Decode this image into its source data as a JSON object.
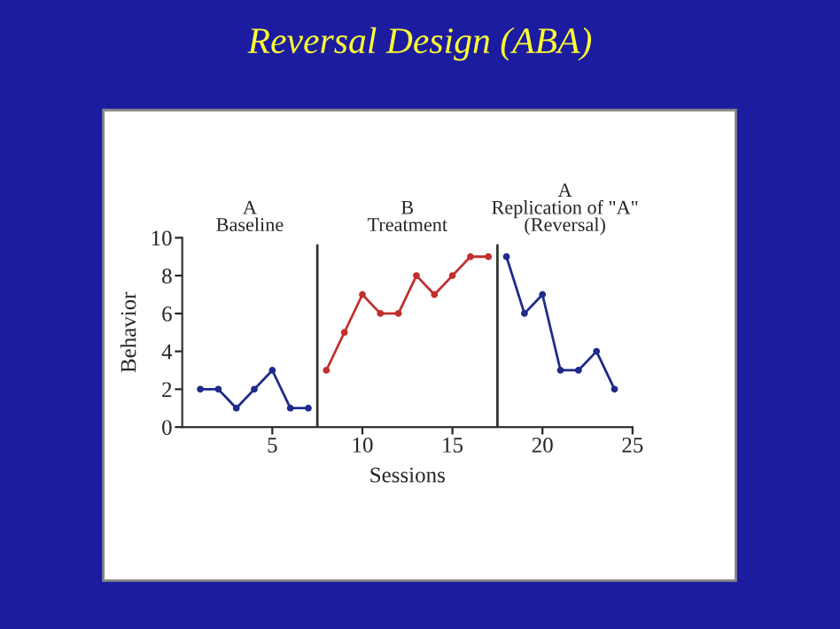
{
  "chart_data": {
    "type": "line",
    "title": "Reversal Design (ABA)",
    "xlabel": "Sessions",
    "ylabel": "Behavior",
    "series": [
      {
        "color": "#1f2a8a",
        "x": [
          1,
          2,
          3,
          4,
          5,
          6,
          7
        ],
        "values": [
          2,
          2,
          1,
          2,
          3,
          1,
          1
        ]
      },
      {
        "color": "#c0302e",
        "x": [
          8,
          9,
          10,
          11,
          12,
          13,
          14,
          15,
          16,
          17
        ],
        "values": [
          3,
          5,
          7,
          6,
          6,
          8,
          7,
          8,
          9,
          9
        ]
      },
      {
        "color": "#1f2a8a",
        "x": [
          18,
          19,
          20,
          21,
          22,
          23,
          24
        ],
        "values": [
          9,
          6,
          7,
          3,
          3,
          4,
          2
        ]
      }
    ],
    "xlim": [
      0,
      25
    ],
    "xticks": [
      5,
      10,
      15,
      20,
      25
    ],
    "ylim": [
      0,
      10
    ],
    "yticks": [
      0,
      2,
      4,
      6,
      8,
      10
    ],
    "ref_lines": [
      {
        "axis": "x",
        "value": 7.5,
        "color": "#333333"
      },
      {
        "axis": "x",
        "value": 17.5,
        "color": "#333333"
      }
    ],
    "annotations": [
      "A\nBaseline",
      "B\nTreatment",
      "A\nReplication of \"A\"\n(Reversal)"
    ],
    "marker": "circle",
    "line_style": "solid",
    "grid": false,
    "legend": false
  }
}
